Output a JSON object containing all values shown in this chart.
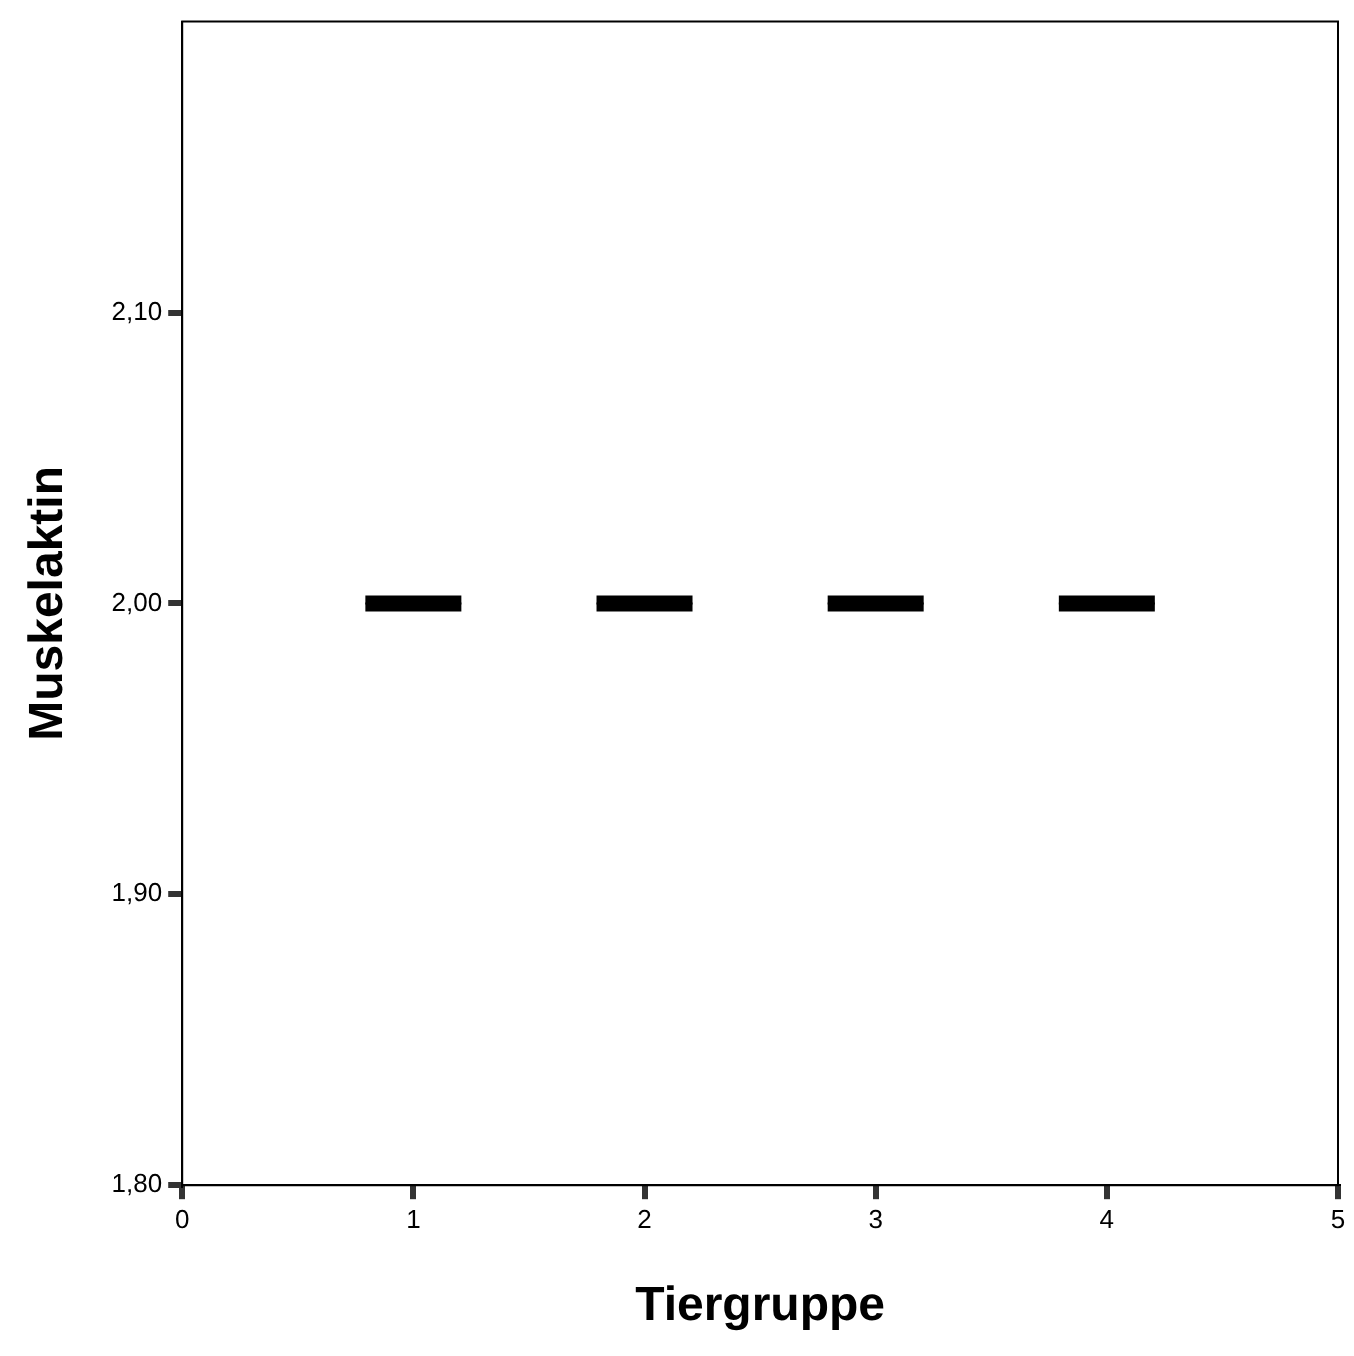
{
  "chart_data": {
    "type": "box",
    "xlabel": "Tiergruppe",
    "ylabel": "Muskelaktin",
    "series": [
      {
        "type": "box",
        "x": [
          1,
          2,
          3,
          4
        ],
        "color": "#000000",
        "boxes": [
          {
            "low": 2.0,
            "q1": 2.0,
            "median": 2.0,
            "q3": 2.0,
            "high": 2.0
          },
          {
            "low": 2.0,
            "q1": 2.0,
            "median": 2.0,
            "q3": 2.0,
            "high": 2.0
          },
          {
            "low": 2.0,
            "q1": 2.0,
            "median": 2.0,
            "q3": 2.0,
            "high": 2.0
          },
          {
            "low": 2.0,
            "q1": 2.0,
            "median": 2.0,
            "q3": 2.0,
            "high": 2.0
          }
        ]
      }
    ],
    "xlim": [
      0,
      5
    ],
    "xticks": [
      0,
      1,
      2,
      3,
      4,
      5
    ],
    "ylim": [
      1.8,
      2.2
    ],
    "yticks": [
      {
        "value": 1.8,
        "label": "1,80"
      },
      {
        "value": 1.9,
        "label": "1,90"
      },
      {
        "value": 2.0,
        "label": "2,00"
      },
      {
        "value": 2.1,
        "label": "2,10"
      }
    ],
    "grid": false,
    "legend": false
  }
}
